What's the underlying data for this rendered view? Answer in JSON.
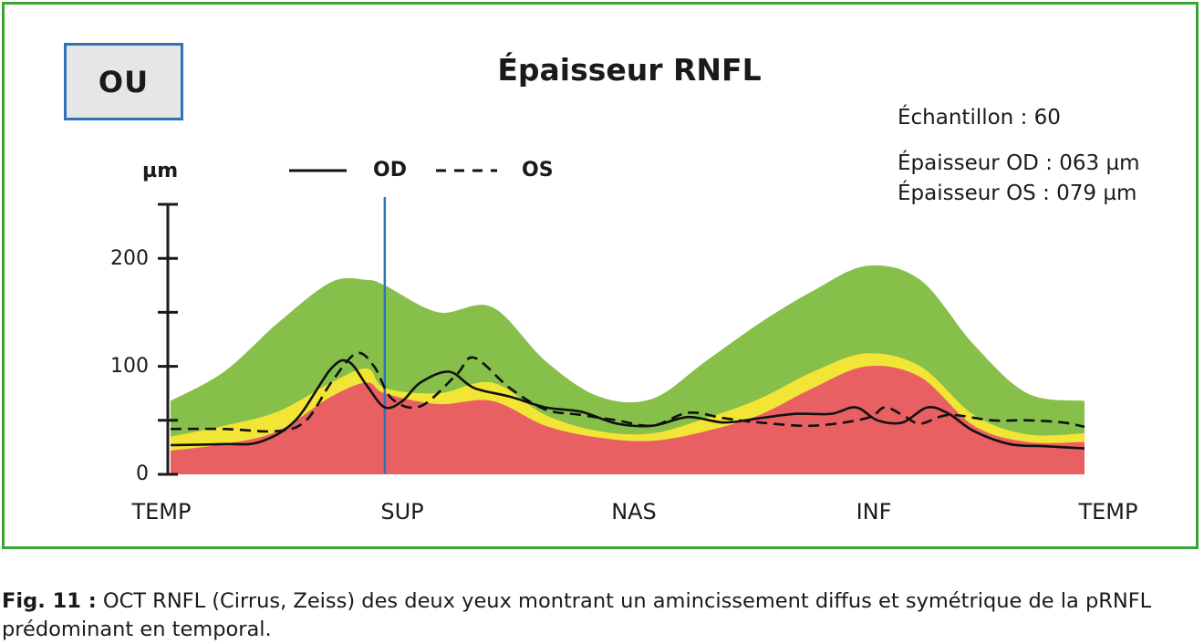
{
  "badge": "OU",
  "stats": {
    "echantillon": "Échantillon : 60",
    "epaisseur_od": "Épaisseur OD : 063 µm",
    "epaisseur_os": "Épaisseur OS : 079 µm"
  },
  "caption": {
    "label": "Fig. 11 :",
    "text": " OCT RNFL (Cirrus, Zeiss) des deux yeux montrant un amincissement diffus et symétrique de la pRNFL prédominant en temporal."
  },
  "colors": {
    "frame": "#3aa535",
    "badge_border": "#2d73b6",
    "green_band": "#86bf4a",
    "yellow_band": "#f2e535",
    "red_band": "#e96063",
    "marker": "#2d73b6"
  },
  "chart_data": {
    "type": "line",
    "title": "Épaisseur RNFL",
    "ylabel": "µm",
    "ylim": [
      0,
      250
    ],
    "yticks": [
      0,
      100,
      200
    ],
    "y_minor_ticks": [
      50,
      150,
      250
    ],
    "x_labels": [
      "TEMP",
      "SUP",
      "NAS",
      "INF",
      "TEMP"
    ],
    "xlim": [
      0,
      256
    ],
    "marker_x": 60,
    "bands": {
      "x": [
        0,
        15,
        30,
        45,
        55,
        60,
        75,
        90,
        105,
        120,
        135,
        150,
        165,
        180,
        195,
        210,
        225,
        240,
        256
      ],
      "red": [
        22,
        28,
        40,
        72,
        85,
        75,
        65,
        68,
        45,
        34,
        31,
        40,
        55,
        80,
        100,
        90,
        45,
        30,
        30
      ],
      "yellow": [
        35,
        45,
        58,
        85,
        98,
        80,
        75,
        85,
        55,
        40,
        38,
        52,
        70,
        95,
        112,
        100,
        55,
        37,
        38
      ],
      "green": [
        68,
        95,
        140,
        178,
        180,
        175,
        150,
        155,
        105,
        72,
        70,
        105,
        140,
        170,
        193,
        180,
        120,
        75,
        68
      ]
    },
    "series": [
      {
        "name": "OD",
        "style": "solid",
        "x": [
          0,
          15,
          25,
          35,
          45,
          50,
          55,
          60,
          65,
          70,
          78,
          85,
          95,
          105,
          115,
          125,
          135,
          145,
          155,
          165,
          175,
          185,
          192,
          198,
          205,
          212,
          218,
          225,
          235,
          245,
          256
        ],
        "values": [
          27,
          28,
          30,
          50,
          98,
          104,
          82,
          62,
          68,
          85,
          95,
          80,
          72,
          62,
          58,
          47,
          45,
          53,
          48,
          52,
          56,
          56,
          62,
          50,
          48,
          62,
          56,
          40,
          28,
          26,
          24
        ]
      },
      {
        "name": "OS",
        "style": "dashed",
        "x": [
          0,
          15,
          30,
          38,
          45,
          52,
          57,
          62,
          70,
          80,
          85,
          95,
          105,
          115,
          125,
          135,
          145,
          155,
          165,
          180,
          195,
          200,
          205,
          210,
          218,
          230,
          240,
          250,
          256
        ],
        "values": [
          42,
          42,
          40,
          50,
          85,
          112,
          100,
          70,
          63,
          92,
          108,
          80,
          60,
          55,
          50,
          45,
          57,
          52,
          48,
          45,
          52,
          62,
          55,
          47,
          55,
          50,
          50,
          48,
          44
        ]
      }
    ]
  }
}
